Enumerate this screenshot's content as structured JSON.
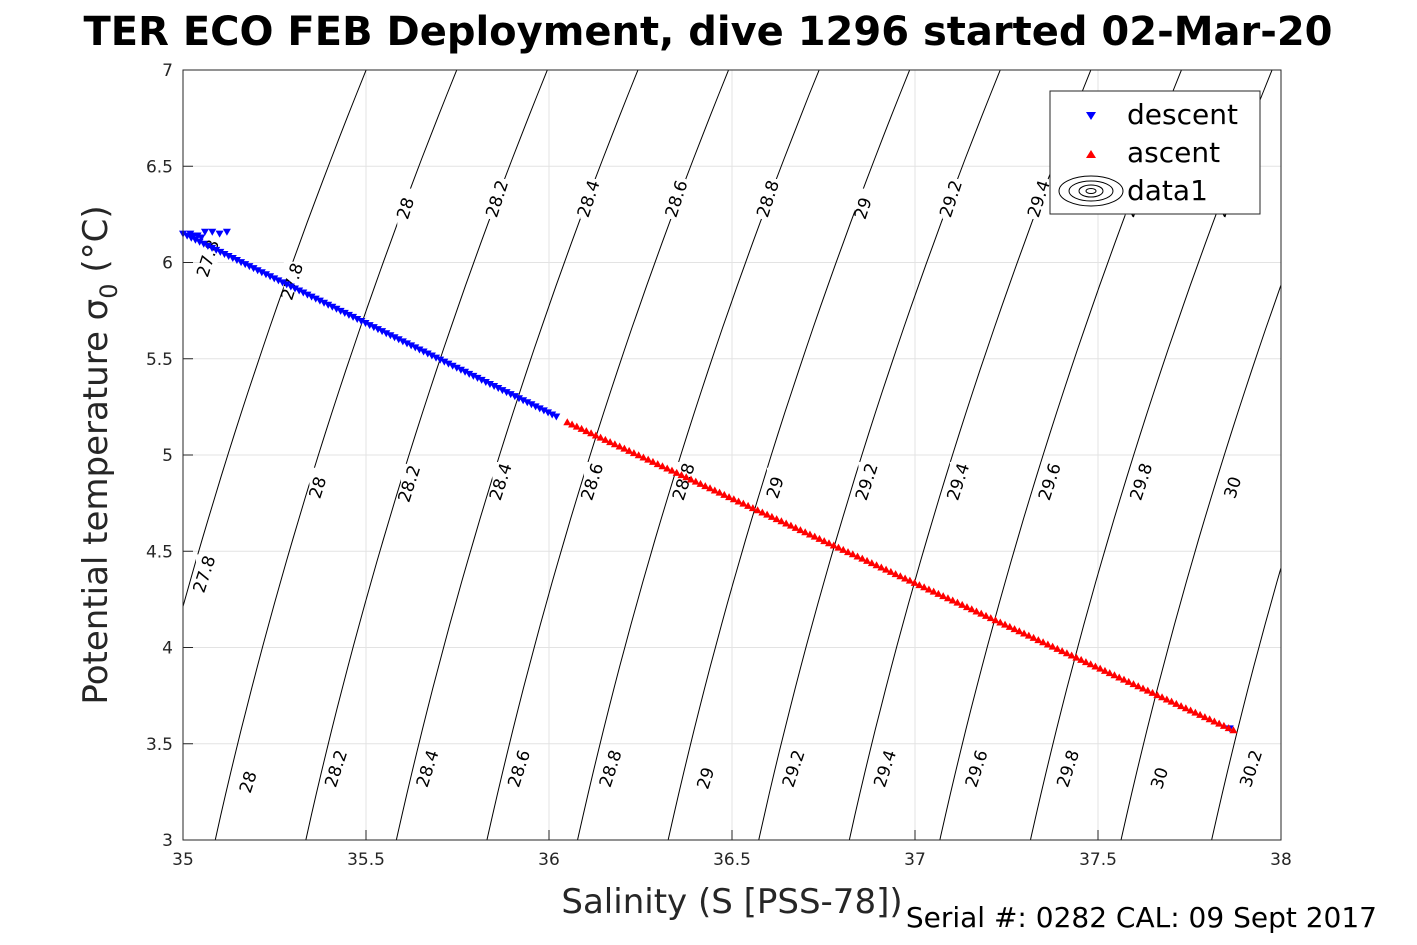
{
  "chart_data": {
    "type": "scatter",
    "title": "TER ECO FEB Deployment, dive 1296 started 02-Mar-20",
    "xlabel": "Salinity (S [PSS-78])",
    "ylabel": "Potential temperature σ",
    "ylabel_sub": "0",
    "ylabel_unit": " (°C)",
    "xlim": [
      35,
      38
    ],
    "ylim": [
      3,
      7
    ],
    "x_ticks": [
      "35",
      "35.5",
      "36",
      "36.5",
      "37",
      "37.5",
      "38"
    ],
    "y_ticks": [
      "3",
      "3.5",
      "4",
      "4.5",
      "5",
      "5.5",
      "6",
      "6.5",
      "7"
    ],
    "grid": true,
    "legend_position": "top-right",
    "legend": [
      "descent",
      "ascent",
      "data1"
    ],
    "series": [
      {
        "name": "descent",
        "marker": "triangle-down",
        "color": "#0000ff",
        "start": [
          35.0,
          6.15
        ],
        "end": [
          36.02,
          5.2
        ],
        "cluster": [
          [
            35.02,
            6.15
          ],
          [
            35.04,
            6.14
          ],
          [
            35.06,
            6.16
          ],
          [
            35.08,
            6.16
          ],
          [
            35.1,
            6.15
          ],
          [
            35.12,
            6.16
          ],
          [
            35.05,
            6.13
          ],
          [
            35.03,
            6.14
          ]
        ],
        "extra": [
          [
            37.86,
            3.58
          ]
        ]
      },
      {
        "name": "ascent",
        "marker": "triangle-up",
        "color": "#ff0000",
        "start": [
          36.05,
          5.17
        ],
        "end": [
          37.87,
          3.57
        ]
      }
    ],
    "contours": [
      {
        "level": "27.8",
        "labels": [
          [
            35.07,
            6.02
          ],
          [
            35.3,
            5.9
          ],
          [
            35.06,
            4.38
          ]
        ]
      },
      {
        "level": "28",
        "labels": [
          [
            35.61,
            6.28
          ],
          [
            35.37,
            4.83
          ],
          [
            35.18,
            3.3
          ]
        ]
      },
      {
        "level": "28.2",
        "labels": [
          [
            35.86,
            6.33
          ],
          [
            35.62,
            4.85
          ],
          [
            35.42,
            3.37
          ]
        ]
      },
      {
        "level": "28.4",
        "labels": [
          [
            36.11,
            6.33
          ],
          [
            35.87,
            4.86
          ],
          [
            35.67,
            3.37
          ]
        ]
      },
      {
        "level": "28.6",
        "labels": [
          [
            36.35,
            6.33
          ],
          [
            36.12,
            4.86
          ],
          [
            35.92,
            3.37
          ]
        ]
      },
      {
        "level": "28.8",
        "labels": [
          [
            36.6,
            6.33
          ],
          [
            36.37,
            4.86
          ],
          [
            36.17,
            3.37
          ]
        ]
      },
      {
        "level": "29",
        "labels": [
          [
            36.86,
            6.28
          ],
          [
            36.62,
            4.83
          ],
          [
            36.43,
            3.32
          ]
        ]
      },
      {
        "level": "29.2",
        "labels": [
          [
            37.1,
            6.33
          ],
          [
            36.87,
            4.86
          ],
          [
            36.67,
            3.37
          ]
        ]
      },
      {
        "level": "29.4",
        "labels": [
          [
            37.34,
            6.33
          ],
          [
            37.12,
            4.86
          ],
          [
            36.92,
            3.37
          ]
        ]
      },
      {
        "level": "29.6",
        "labels": [
          [
            37.6,
            6.33
          ],
          [
            37.37,
            4.86
          ],
          [
            37.17,
            3.37
          ]
        ]
      },
      {
        "level": "29.8",
        "labels": [
          [
            37.85,
            6.33
          ],
          [
            37.62,
            4.86
          ],
          [
            37.42,
            3.37
          ]
        ]
      },
      {
        "level": "30",
        "labels": [
          [
            38.1,
            6.28
          ],
          [
            37.87,
            4.83
          ],
          [
            37.67,
            3.32
          ]
        ]
      },
      {
        "level": "30.2",
        "labels": [
          [
            38.1,
            6.28
          ],
          [
            38.1,
            4.86
          ],
          [
            37.92,
            3.37
          ]
        ]
      }
    ],
    "serial_text": "Serial #: 0282  CAL: 09 Sept 2017"
  }
}
